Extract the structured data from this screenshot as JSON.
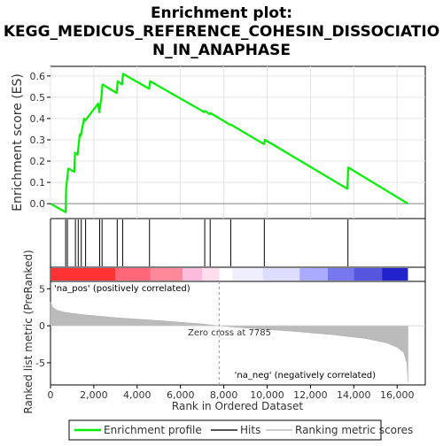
{
  "chart_data": {
    "type": "line",
    "title_lines": [
      "Enrichment plot:",
      "KEGG_MEDICUS_REFERENCE_COHESIN_DISSOCIATIO",
      "N_IN_ANAPHASE"
    ],
    "top_ylabel": "Enrichment score (ES)",
    "bottom_ylabel": "Ranked list metric (PreRanked)",
    "xlabel": "Rank in Ordered Dataset",
    "xlim": [
      0,
      17300
    ],
    "es_ylim": [
      -0.07,
      0.645
    ],
    "metric_ylim": [
      -8,
      6
    ],
    "x_ticks": [
      0,
      2000,
      4000,
      6000,
      8000,
      10000,
      12000,
      14000,
      16000
    ],
    "x_tick_labels": [
      "0",
      "2,000",
      "4,000",
      "6,000",
      "8,000",
      "10,000",
      "12,000",
      "14,000",
      "16,000"
    ],
    "es_ticks": [
      0.0,
      0.1,
      0.2,
      0.3,
      0.4,
      0.5,
      0.6
    ],
    "es_tick_labels": [
      "0.0",
      "0.1",
      "0.2",
      "0.3",
      "0.4",
      "0.5",
      "0.6"
    ],
    "metric_ticks": [
      -5,
      0,
      5
    ],
    "metric_tick_labels": [
      "-5",
      "0",
      "5"
    ],
    "series": [
      {
        "name": "Enrichment profile",
        "color": "#00ee00",
        "x": [
          0,
          700,
          720,
          820,
          1100,
          1130,
          1250,
          1350,
          1400,
          1550,
          1600,
          2200,
          2250,
          2350,
          2400,
          3050,
          3100,
          3300,
          3350,
          4550,
          4600,
          7100,
          7150,
          7350,
          7400,
          8300,
          8350,
          9850,
          9900,
          13700,
          13750,
          16500
        ],
        "y": [
          0.0,
          -0.04,
          0.07,
          0.165,
          0.15,
          0.24,
          0.23,
          0.325,
          0.32,
          0.4,
          0.39,
          0.47,
          0.43,
          0.5,
          0.56,
          0.52,
          0.575,
          0.56,
          0.61,
          0.54,
          0.575,
          0.43,
          0.435,
          0.42,
          0.425,
          0.37,
          0.37,
          0.28,
          0.3,
          0.07,
          0.17,
          0.0
        ]
      }
    ],
    "hits": [
      700,
      780,
      1150,
      1280,
      1420,
      1620,
      2270,
      2380,
      3080,
      3330,
      4570,
      7120,
      7370,
      8320,
      9870,
      13730
    ],
    "hits_label": "Hits",
    "metric_label": "Ranking metric scores",
    "zero_cross_rank": 7785,
    "zero_cross_text": "Zero cross at 7785",
    "pos_label": "'na_pos' (positively correlated)",
    "neg_label": "'na_neg' (negatively correlated)",
    "metric_profile": {
      "x": [
        0,
        100,
        300,
        700,
        1500,
        3000,
        5000,
        7000,
        7785,
        9000,
        11000,
        13000,
        14500,
        15500,
        16000,
        16300,
        16450,
        16500
      ],
      "y": [
        3.2,
        2.5,
        2.1,
        1.8,
        1.5,
        1.1,
        0.7,
        0.25,
        0.0,
        -0.3,
        -0.7,
        -1.2,
        -1.7,
        -2.3,
        -2.9,
        -3.6,
        -5.0,
        -7.6
      ]
    },
    "heatmap_segments": [
      {
        "start": 0,
        "end": 3000,
        "color": "#ff3333"
      },
      {
        "start": 3000,
        "end": 4600,
        "color": "#ff6677"
      },
      {
        "start": 4600,
        "end": 6100,
        "color": "#ff8899"
      },
      {
        "start": 6100,
        "end": 7000,
        "color": "#ffbbdd"
      },
      {
        "start": 7000,
        "end": 7800,
        "color": "#ffddee"
      },
      {
        "start": 7800,
        "end": 8400,
        "color": "#ffffff"
      },
      {
        "start": 8400,
        "end": 9800,
        "color": "#eeeeff"
      },
      {
        "start": 9800,
        "end": 11500,
        "color": "#ddddff"
      },
      {
        "start": 11500,
        "end": 12800,
        "color": "#aaaaff"
      },
      {
        "start": 12800,
        "end": 14000,
        "color": "#7777ee"
      },
      {
        "start": 14000,
        "end": 15300,
        "color": "#5555dd"
      },
      {
        "start": 15300,
        "end": 16500,
        "color": "#2222cc"
      }
    ],
    "colors": {
      "es_line": "#00ee00",
      "hit_line": "#000000",
      "metric_fill": "#bbbbbb",
      "zero_line": "#999999",
      "pos_text": "#cc0000",
      "neg_text": "#0000cc",
      "frame": "#000000"
    }
  }
}
